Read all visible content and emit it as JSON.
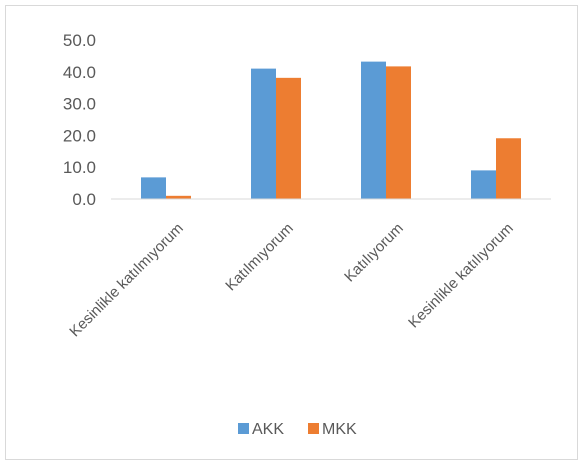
{
  "chart_data": {
    "type": "bar",
    "categories": [
      "Kesinlikle katılmıyorum",
      "Katılmıyorum",
      "Katılıyorum",
      "Kesinlikle katılıyorum"
    ],
    "series": [
      {
        "name": "AKK",
        "values": [
          6.8,
          41.0,
          43.2,
          9.0
        ],
        "color": "#5b9bd5"
      },
      {
        "name": "MKK",
        "values": [
          1.0,
          38.1,
          41.7,
          19.1
        ],
        "color": "#ed7d31"
      }
    ],
    "title": "",
    "xlabel": "",
    "ylabel": "",
    "ylim": [
      0,
      50
    ],
    "yticks": [
      "0.0",
      "10.0",
      "20.0",
      "30.0",
      "40.0",
      "50.0"
    ],
    "grid": false,
    "legend": "bottom"
  }
}
